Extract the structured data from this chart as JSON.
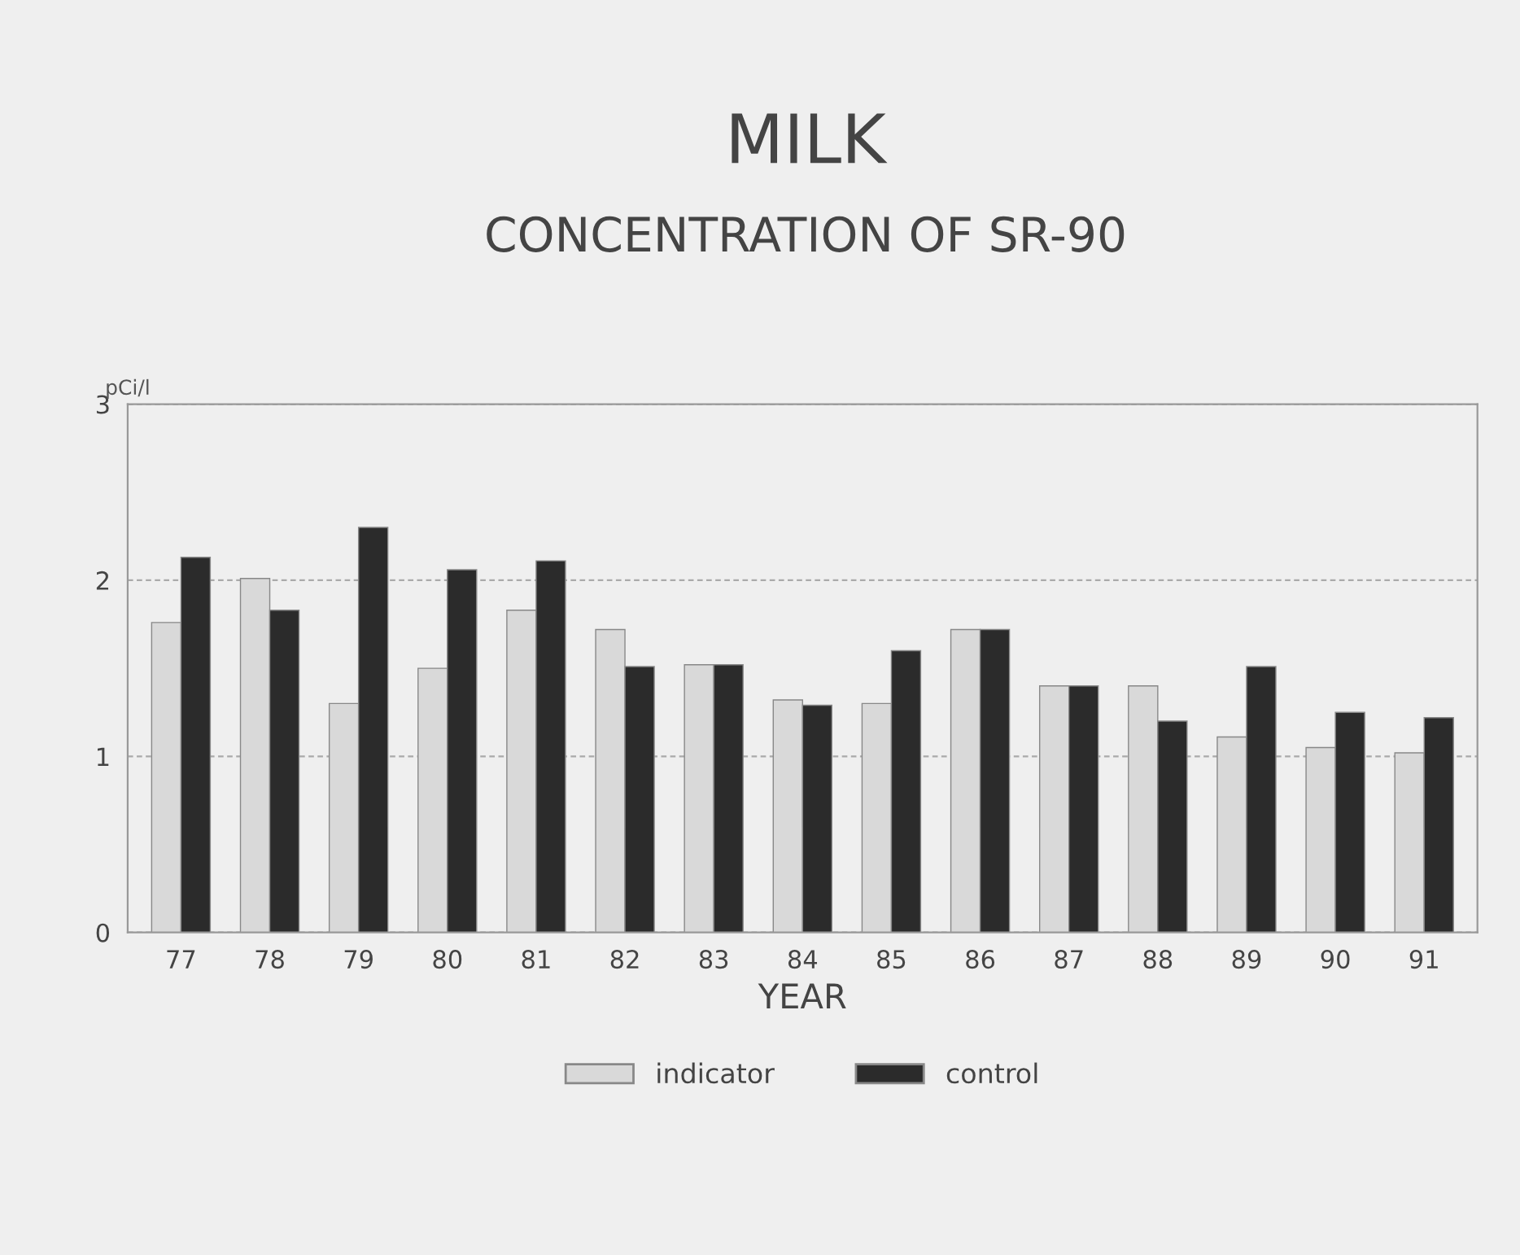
{
  "chart_data": {
    "type": "bar",
    "title": "MILK",
    "subtitle": "CONCENTRATION OF SR-90",
    "xlabel": "YEAR",
    "ylabel": "pCi/l",
    "categories": [
      "77",
      "78",
      "79",
      "80",
      "81",
      "82",
      "83",
      "84",
      "85",
      "86",
      "87",
      "88",
      "89",
      "90",
      "91"
    ],
    "series": [
      {
        "name": "indicator",
        "color": "#d9d9d9",
        "values": [
          1.76,
          2.01,
          1.3,
          1.5,
          1.83,
          1.72,
          1.52,
          1.32,
          1.3,
          1.72,
          1.4,
          1.4,
          1.11,
          1.05,
          1.02
        ]
      },
      {
        "name": "control",
        "color": "#2b2b2b",
        "values": [
          2.13,
          1.83,
          2.3,
          2.06,
          2.11,
          1.51,
          1.52,
          1.29,
          1.6,
          1.72,
          1.4,
          1.2,
          1.51,
          1.25,
          1.22
        ]
      }
    ],
    "ylim": [
      0,
      3
    ],
    "yticks": [
      0,
      1,
      2,
      3
    ],
    "grid": "y",
    "legend": "bottom"
  }
}
